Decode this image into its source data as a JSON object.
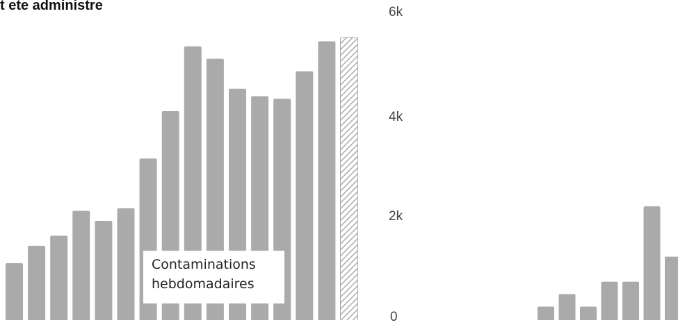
{
  "chart_data": [
    {
      "type": "bar",
      "title": "t ete administre",
      "annotation_lines": [
        "Contaminations",
        "hebdomadaires"
      ],
      "values": [
        1100,
        1450,
        1650,
        2150,
        1950,
        2200,
        3200,
        4150,
        5450,
        5200,
        4600,
        4450,
        4400,
        4950,
        5550,
        5630
      ],
      "hatched_last": true,
      "y_ticks": [
        "6k",
        "4k",
        "2k",
        "0"
      ],
      "ylim": [
        0,
        6000
      ],
      "bar_color": "#aaaaaa"
    },
    {
      "type": "bar",
      "values": [
        230,
        480,
        230,
        730,
        730,
        2240,
        1230
      ],
      "ylim": [
        0,
        6000
      ],
      "bar_color": "#aaaaaa"
    }
  ]
}
